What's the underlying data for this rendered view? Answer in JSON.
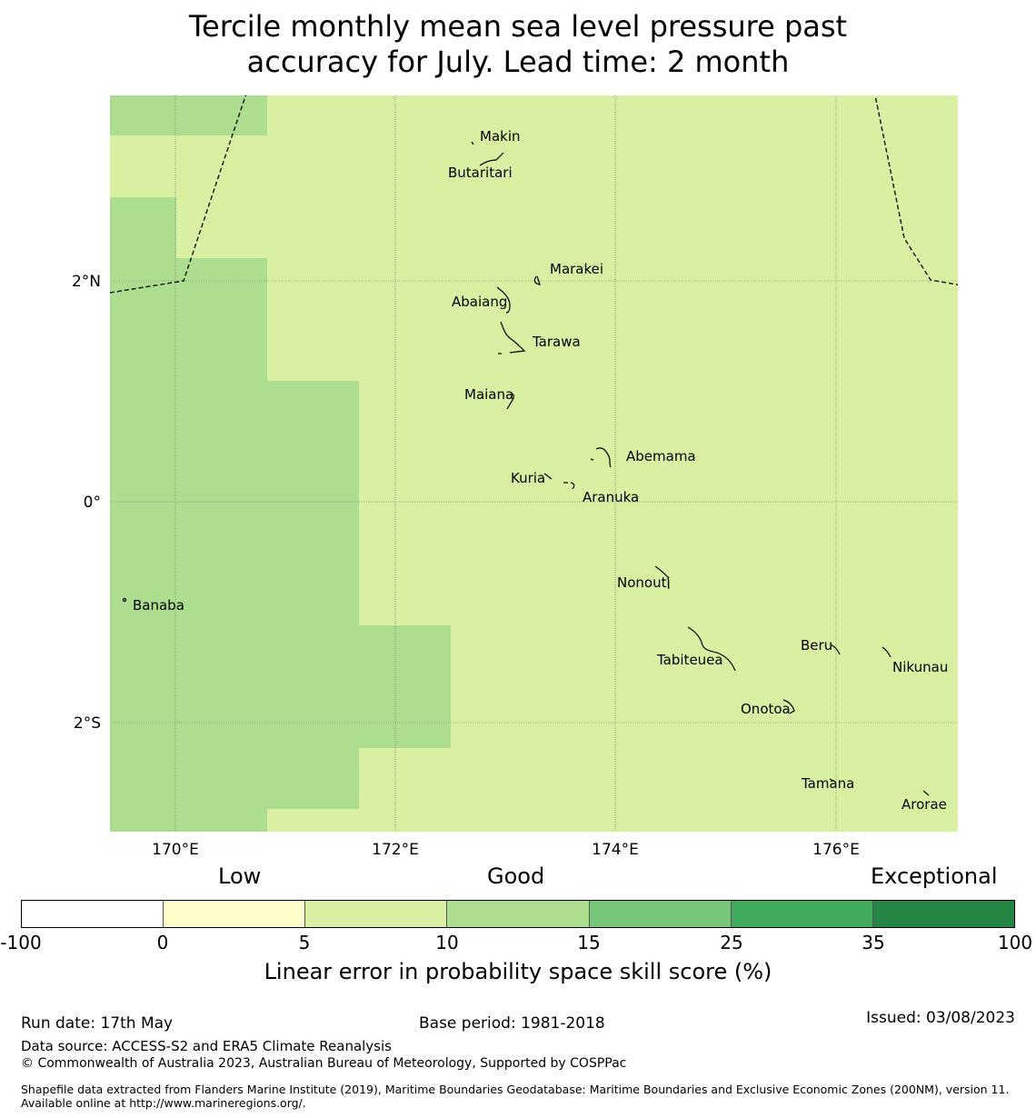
{
  "title_line1": "Tercile monthly mean sea level pressure past",
  "title_line2": "accuracy for July. Lead time: 2 month",
  "map": {
    "lon_range": [
      169.4,
      177.1
    ],
    "lat_range": [
      -3.0,
      3.5
    ],
    "lon_ticks": [
      "170°E",
      "172°E",
      "174°E",
      "176°E"
    ],
    "lat_ticks": [
      "2°N",
      "0°",
      "2°S"
    ],
    "colors": {
      "light": "#d9f0a3",
      "medium": "#addd8e"
    },
    "islands": [
      {
        "name": "Makin",
        "lon": 172.9,
        "lat": 3.3
      },
      {
        "name": "Butaritari",
        "lon": 172.9,
        "lat": 3.0
      },
      {
        "name": "Marakei",
        "lon": 173.3,
        "lat": 2.0
      },
      {
        "name": "Abaiang",
        "lon": 173.0,
        "lat": 1.8
      },
      {
        "name": "Tarawa",
        "lon": 173.0,
        "lat": 1.4
      },
      {
        "name": "Maiana",
        "lon": 173.0,
        "lat": 1.0
      },
      {
        "name": "Abemama",
        "lon": 173.9,
        "lat": 0.4
      },
      {
        "name": "Kuria",
        "lon": 173.4,
        "lat": 0.2
      },
      {
        "name": "Aranuka",
        "lon": 173.6,
        "lat": 0.15
      },
      {
        "name": "Nonouti",
        "lon": 174.4,
        "lat": -0.65
      },
      {
        "name": "Banaba",
        "lon": 169.5,
        "lat": -0.9
      },
      {
        "name": "Tabiteuea",
        "lon": 174.8,
        "lat": -1.3
      },
      {
        "name": "Beru",
        "lon": 176.0,
        "lat": -1.3
      },
      {
        "name": "Nikunau",
        "lon": 176.4,
        "lat": -1.35
      },
      {
        "name": "Onotoa",
        "lon": 175.6,
        "lat": -1.8
      },
      {
        "name": "Tamana",
        "lon": 176.0,
        "lat": -2.5
      },
      {
        "name": "Arorae",
        "lon": 176.8,
        "lat": -2.65
      }
    ]
  },
  "colorbar": {
    "categories": [
      "Low",
      "Good",
      "Exceptional"
    ],
    "tick_labels": [
      "-100",
      "0",
      "5",
      "10",
      "15",
      "25",
      "35",
      "100"
    ],
    "colors": [
      "#ffffff",
      "#ffffcc",
      "#d9f0a3",
      "#addd8e",
      "#78c679",
      "#41ab5d",
      "#238443"
    ],
    "label": "Linear error in probability space skill score (%)"
  },
  "footer": {
    "run_date": "Run date: 17th May",
    "base_period": "Base period: 1981-2018",
    "issued": "Issued: 03/08/2023",
    "data_source": "Data source: ACCESS-S2 and ERA5 Climate Reanalysis",
    "copyright": "© Commonwealth of Australia 2023, Australian Bureau of Meteorology, Supported by COSPPac",
    "shapefile": "Shapefile data extracted from Flanders Marine Institute (2019), Maritime Boundaries Geodatabase: Maritime Boundaries and Exclusive Economic Zones (200NM), version 11. Available online at http://www.marineregions.org/."
  }
}
